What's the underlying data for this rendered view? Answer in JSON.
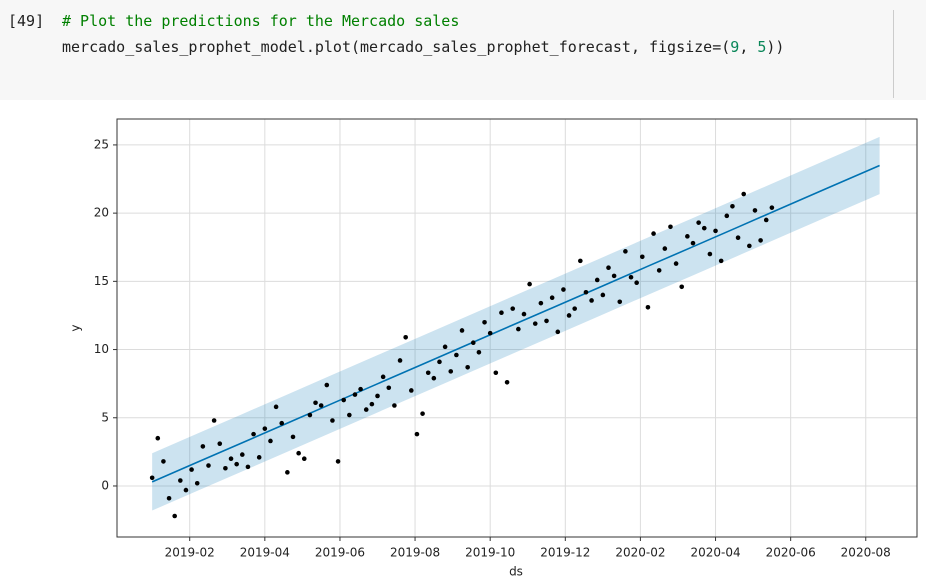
{
  "cell": {
    "prompt": "[49]",
    "comment": "# Plot the predictions for the Mercado sales",
    "code": [
      "mercado_sales_prophet_model.plot(mercado_sales_prophet_forecast, figsize=(",
      "9",
      ", ",
      "5",
      "))"
    ]
  },
  "chart_data": {
    "type": "forecast",
    "xlabel": "ds",
    "ylabel": "y",
    "xlim": [
      2018.922,
      2020.697
    ],
    "ylim": [
      -3.74,
      26.9
    ],
    "xticks": [
      {
        "value": 2019.0833,
        "label": "2019-02"
      },
      {
        "value": 2019.25,
        "label": "2019-04"
      },
      {
        "value": 2019.4167,
        "label": "2019-06"
      },
      {
        "value": 2019.5833,
        "label": "2019-08"
      },
      {
        "value": 2019.75,
        "label": "2019-10"
      },
      {
        "value": 2019.9167,
        "label": "2019-12"
      },
      {
        "value": 2020.0833,
        "label": "2020-02"
      },
      {
        "value": 2020.25,
        "label": "2020-04"
      },
      {
        "value": 2020.4167,
        "label": "2020-06"
      },
      {
        "value": 2020.5833,
        "label": "2020-08"
      }
    ],
    "yticks": [
      0,
      5,
      10,
      15,
      20,
      25
    ],
    "grid": true,
    "point_color": "#000000",
    "line_color": "#0072b2",
    "band_color": "#0072b2",
    "points": {
      "x": [
        2019.0,
        2019.0125,
        2019.025,
        2019.0375,
        2019.05,
        2019.0625,
        2019.075,
        2019.0875,
        2019.1,
        2019.1125,
        2019.125,
        2019.1375,
        2019.15,
        2019.1625,
        2019.175,
        2019.1875,
        2019.2,
        2019.2125,
        2019.225,
        2019.2375,
        2019.25,
        2019.2625,
        2019.275,
        2019.2875,
        2019.3,
        2019.3125,
        2019.325,
        2019.3375,
        2019.35,
        2019.3625,
        2019.375,
        2019.3875,
        2019.4,
        2019.4125,
        2019.425,
        2019.4375,
        2019.45,
        2019.4625,
        2019.475,
        2019.4875,
        2019.5,
        2019.5125,
        2019.525,
        2019.5375,
        2019.55,
        2019.5625,
        2019.575,
        2019.5875,
        2019.6,
        2019.6125,
        2019.625,
        2019.6375,
        2019.65,
        2019.6625,
        2019.675,
        2019.6875,
        2019.7,
        2019.7125,
        2019.725,
        2019.7375,
        2019.75,
        2019.7625,
        2019.775,
        2019.7875,
        2019.8,
        2019.8125,
        2019.825,
        2019.8375,
        2019.85,
        2019.8625,
        2019.875,
        2019.8875,
        2019.9,
        2019.9125,
        2019.925,
        2019.9375,
        2019.95,
        2019.9625,
        2019.975,
        2019.9875,
        2020.0,
        2020.0125,
        2020.025,
        2020.0375,
        2020.05,
        2020.0625,
        2020.075,
        2020.0875,
        2020.1,
        2020.1125,
        2020.125,
        2020.1375,
        2020.15,
        2020.1625,
        2020.175,
        2020.1875,
        2020.2,
        2020.2125,
        2020.225,
        2020.2375,
        2020.25,
        2020.2625,
        2020.275,
        2020.2875,
        2020.3,
        2020.3125,
        2020.325,
        2020.3375,
        2020.35,
        2020.3625,
        2020.375
      ],
      "y": [
        0.6,
        3.5,
        1.8,
        -0.9,
        -2.2,
        0.4,
        -0.3,
        1.2,
        0.2,
        2.9,
        1.5,
        4.8,
        3.1,
        1.3,
        2.0,
        1.6,
        2.3,
        1.4,
        3.8,
        2.1,
        4.2,
        3.3,
        5.8,
        4.6,
        1.0,
        3.6,
        2.4,
        2.0,
        5.2,
        6.1,
        5.9,
        7.4,
        4.8,
        1.8,
        6.3,
        5.2,
        6.7,
        7.1,
        5.6,
        6.0,
        6.6,
        8.0,
        7.2,
        5.9,
        9.2,
        10.9,
        7.0,
        3.8,
        5.3,
        8.3,
        7.9,
        9.1,
        10.2,
        8.4,
        9.6,
        11.4,
        8.7,
        10.5,
        9.8,
        12.0,
        11.2,
        8.3,
        12.7,
        7.6,
        13.0,
        11.5,
        12.6,
        14.8,
        11.9,
        13.4,
        12.1,
        13.8,
        11.3,
        14.4,
        12.5,
        13.0,
        16.5,
        14.2,
        13.6,
        15.1,
        14.0,
        16.0,
        15.4,
        13.5,
        17.2,
        15.3,
        14.9,
        16.8,
        13.1,
        18.5,
        15.8,
        17.4,
        19.0,
        16.3,
        14.6,
        18.3,
        17.8,
        19.3,
        18.9,
        17.0,
        18.7,
        16.5,
        19.8,
        20.5,
        18.2,
        21.4,
        17.6,
        20.2,
        18.0,
        19.5,
        20.4
      ]
    },
    "forecast": {
      "x": [
        2019.0,
        2019.1,
        2019.2,
        2019.3,
        2019.4,
        2019.5,
        2019.6,
        2019.7,
        2019.8,
        2019.9,
        2020.0,
        2020.1,
        2020.2,
        2020.3,
        2020.4,
        2020.5,
        2020.6,
        2020.614
      ],
      "y": [
        0.3,
        1.74,
        3.17,
        4.61,
        6.05,
        7.49,
        8.92,
        10.36,
        11.8,
        13.23,
        14.67,
        16.11,
        17.54,
        18.98,
        20.42,
        21.86,
        23.29,
        23.49
      ],
      "lower": [
        -1.8,
        -0.36,
        1.07,
        2.51,
        3.95,
        5.39,
        6.82,
        8.26,
        9.7,
        11.13,
        12.57,
        14.01,
        15.44,
        16.88,
        18.32,
        19.76,
        21.19,
        21.39
      ],
      "upper": [
        2.4,
        3.84,
        5.27,
        6.71,
        8.15,
        9.59,
        11.02,
        12.46,
        13.9,
        15.33,
        16.77,
        18.21,
        19.64,
        21.08,
        22.52,
        23.96,
        25.39,
        25.59
      ]
    }
  }
}
